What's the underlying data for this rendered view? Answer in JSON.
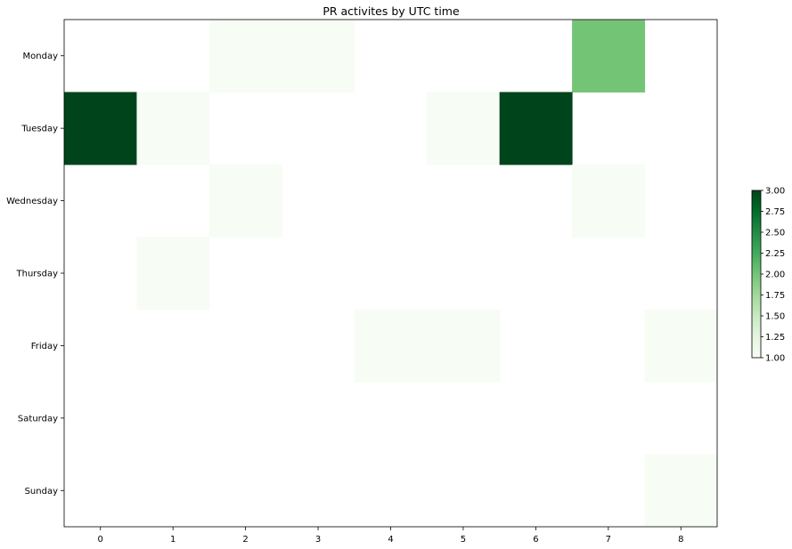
{
  "chart_data": {
    "type": "heatmap",
    "title": "PR activites by UTC time",
    "xlabel": "",
    "ylabel": "",
    "x_categories": [
      "0",
      "1",
      "2",
      "3",
      "4",
      "5",
      "6",
      "7",
      "8"
    ],
    "y_categories": [
      "Monday",
      "Tuesday",
      "Wednesday",
      "Thursday",
      "Friday",
      "Saturday",
      "Sunday"
    ],
    "values": [
      [
        null,
        null,
        1,
        1,
        null,
        null,
        null,
        2,
        null
      ],
      [
        3,
        1,
        null,
        null,
        null,
        1,
        3,
        null,
        null
      ],
      [
        null,
        null,
        1,
        null,
        null,
        null,
        null,
        1,
        null
      ],
      [
        null,
        1,
        null,
        null,
        null,
        null,
        null,
        null,
        null
      ],
      [
        null,
        null,
        null,
        null,
        1,
        1,
        null,
        null,
        1
      ],
      [
        null,
        null,
        null,
        null,
        null,
        null,
        null,
        null,
        null
      ],
      [
        null,
        null,
        null,
        null,
        null,
        null,
        null,
        null,
        1
      ]
    ],
    "colorscale": "Greens",
    "color_range": [
      1.0,
      3.0
    ],
    "colorbar_ticks": [
      "1.00",
      "1.25",
      "1.50",
      "1.75",
      "2.00",
      "2.25",
      "2.50",
      "2.75",
      "3.00"
    ],
    "grid": false
  }
}
